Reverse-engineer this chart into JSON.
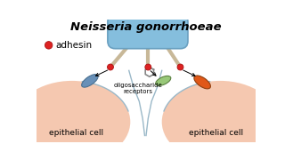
{
  "title": "Neisseria gonorrhoeae",
  "title_style": "italic",
  "title_fontsize": 9.5,
  "bg_color": "#ffffff",
  "cell_color": "#f5c8b0",
  "cell_edge_color": "#9ab8c8",
  "bacterium_color": "#85bedd",
  "bacterium_edge_color": "#6aa0c0",
  "pilus_color": "#c8b898",
  "adhesin_color": "#dd2222",
  "left_receptor_color": "#6890b8",
  "right_receptor_color": "#e05818",
  "center_receptor_color": "#98c878",
  "label_adhesin": "adhesin",
  "label_oligo": "oligosaccharide\nreceptors",
  "label_left_cell": "epithelial cell",
  "label_right_cell": "epithelial cell",
  "legend_adhesin_color": "#dd2222"
}
